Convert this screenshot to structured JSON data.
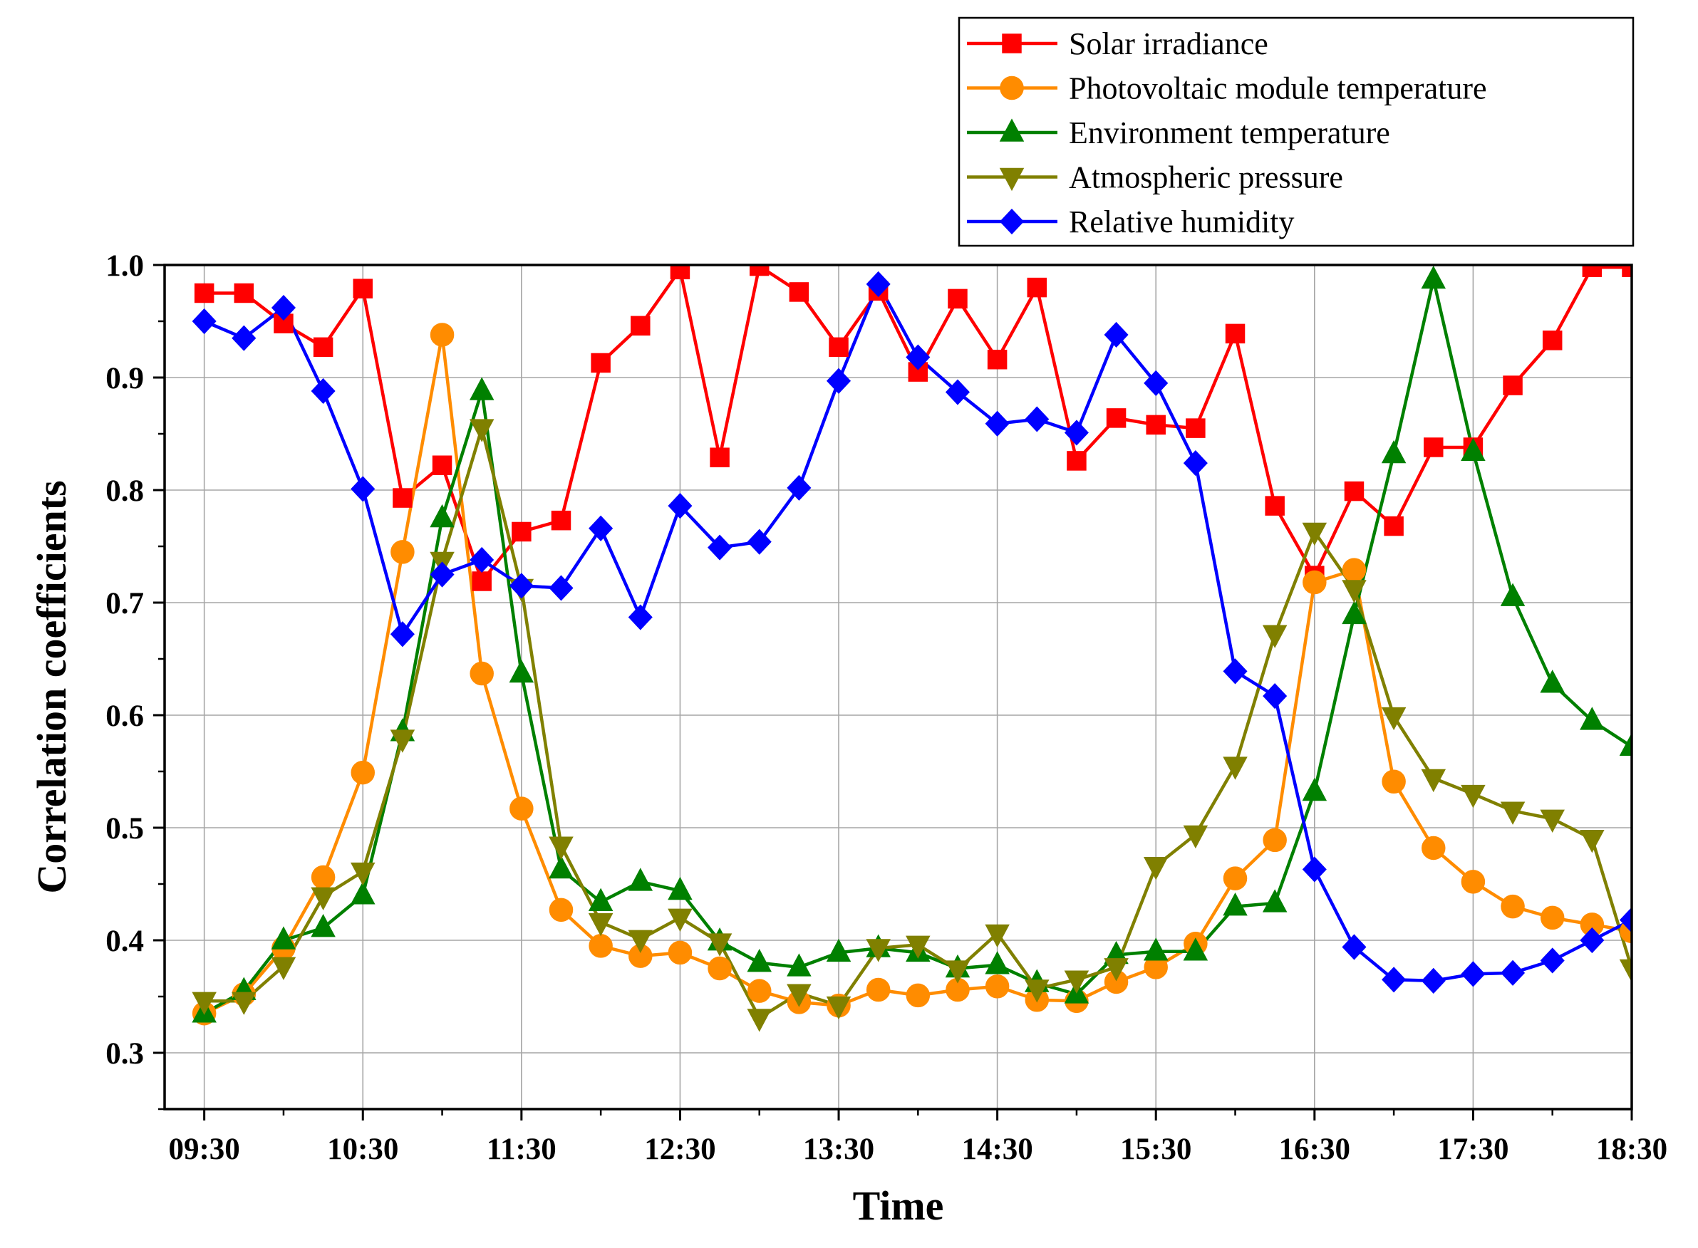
{
  "chart_data": {
    "type": "line",
    "xlabel": "Time",
    "ylabel": "Correlation coefficients",
    "ylim": [
      0.25,
      1.0
    ],
    "yticks": [
      0.3,
      0.4,
      0.5,
      0.6,
      0.7,
      0.8,
      0.9,
      1.0
    ],
    "ytick_labels": [
      "0.3",
      "0.4",
      "0.5",
      "0.6",
      "0.7",
      "0.8",
      "0.9",
      "1.0"
    ],
    "x_unit": "minutes since 09:30 (15-minute steps)",
    "xlim": [
      -15,
      540
    ],
    "xticks": [
      0,
      60,
      120,
      180,
      240,
      300,
      360,
      420,
      480,
      540
    ],
    "xtick_labels": [
      "09:30",
      "10:30",
      "11:30",
      "12:30",
      "13:30",
      "14:30",
      "15:30",
      "16:30",
      "17:30",
      "18:30"
    ],
    "grid": true,
    "legend_position": "top-right, above plot",
    "x": [
      0,
      15,
      30,
      45,
      60,
      75,
      90,
      105,
      120,
      135,
      150,
      165,
      180,
      195,
      210,
      225,
      240,
      255,
      270,
      285,
      300,
      315,
      330,
      345,
      360,
      375,
      390,
      405,
      420,
      435,
      450,
      465,
      480,
      495,
      510,
      525,
      540
    ],
    "series": [
      {
        "name": "Solar irradiance",
        "color": "#ff0000",
        "marker": "square",
        "values": [
          0.975,
          0.975,
          0.948,
          0.927,
          0.979,
          0.793,
          0.822,
          0.719,
          0.763,
          0.773,
          0.913,
          0.946,
          0.996,
          0.829,
          0.999,
          0.976,
          0.927,
          0.977,
          0.905,
          0.97,
          0.916,
          0.98,
          0.826,
          0.864,
          0.858,
          0.855,
          0.939,
          0.786,
          0.724,
          0.799,
          0.768,
          0.838,
          0.838,
          0.893,
          0.933,
          0.998,
          0.998
        ]
      },
      {
        "name": "Photovoltaic module temperature",
        "color": "#ff8c00",
        "marker": "circle",
        "values": [
          0.335,
          0.352,
          0.393,
          0.456,
          0.549,
          0.745,
          0.938,
          0.637,
          0.517,
          0.427,
          0.395,
          0.386,
          0.389,
          0.375,
          0.355,
          0.345,
          0.342,
          0.356,
          0.351,
          0.356,
          0.359,
          0.347,
          0.346,
          0.363,
          0.376,
          0.397,
          0.455,
          0.489,
          0.718,
          0.729,
          0.541,
          0.482,
          0.452,
          0.43,
          0.42,
          0.414,
          0.408
        ]
      },
      {
        "name": "Environment temperature",
        "color": "#008000",
        "marker": "triangle-up",
        "values": [
          0.335,
          0.355,
          0.4,
          0.411,
          0.44,
          0.585,
          0.775,
          0.888,
          0.637,
          0.463,
          0.434,
          0.452,
          0.444,
          0.399,
          0.38,
          0.376,
          0.389,
          0.393,
          0.389,
          0.375,
          0.378,
          0.362,
          0.352,
          0.387,
          0.39,
          0.39,
          0.43,
          0.433,
          0.532,
          0.689,
          0.832,
          0.987,
          0.834,
          0.705,
          0.628,
          0.595,
          0.572
        ]
      },
      {
        "name": "Atmospheric pressure",
        "color": "#808000",
        "marker": "triangle-down",
        "values": [
          0.346,
          0.346,
          0.377,
          0.439,
          0.461,
          0.579,
          0.737,
          0.855,
          0.713,
          0.484,
          0.416,
          0.401,
          0.42,
          0.398,
          0.331,
          0.353,
          0.342,
          0.393,
          0.396,
          0.374,
          0.406,
          0.357,
          0.365,
          0.376,
          0.466,
          0.494,
          0.555,
          0.672,
          0.763,
          0.712,
          0.599,
          0.544,
          0.53,
          0.515,
          0.508,
          0.49,
          0.375
        ]
      },
      {
        "name": "Relative humidity",
        "color": "#0000ff",
        "marker": "diamond",
        "values": [
          0.95,
          0.935,
          0.962,
          0.888,
          0.801,
          0.672,
          0.725,
          0.738,
          0.715,
          0.713,
          0.766,
          0.687,
          0.786,
          0.749,
          0.754,
          0.802,
          0.897,
          0.983,
          0.918,
          0.887,
          0.859,
          0.863,
          0.851,
          0.938,
          0.895,
          0.824,
          0.639,
          0.617,
          0.463,
          0.394,
          0.365,
          0.364,
          0.37,
          0.371,
          0.382,
          0.4,
          0.418
        ]
      }
    ]
  }
}
